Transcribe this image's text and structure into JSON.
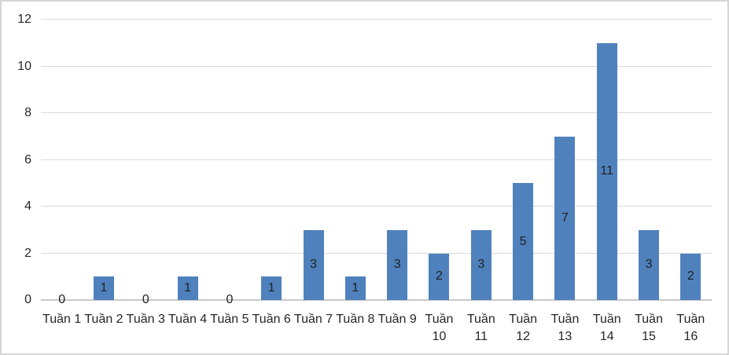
{
  "chart_data": {
    "type": "bar",
    "title": "",
    "xlabel": "",
    "ylabel": "",
    "categories": [
      "Tuần 1",
      "Tuần 2",
      "Tuần 3",
      "Tuần 4",
      "Tuần 5",
      "Tuần 6",
      "Tuần 7",
      "Tuần 8",
      "Tuần 9",
      "Tuần 10",
      "Tuần 11",
      "Tuần 12",
      "Tuần 13",
      "Tuần 14",
      "Tuần 15",
      "Tuần 16"
    ],
    "x_tick_display": [
      "Tuần 1",
      "Tuần 2",
      "Tuần 3",
      "Tuần 4",
      "Tuần 5",
      "Tuần 6",
      "Tuần 7",
      "Tuần 8",
      "Tuần 9",
      "Tuần\n10",
      "Tuần\n11",
      "Tuần\n12",
      "Tuần\n13",
      "Tuần\n14",
      "Tuần\n15",
      "Tuần\n16"
    ],
    "values": [
      0,
      1,
      0,
      1,
      0,
      1,
      3,
      1,
      3,
      2,
      3,
      5,
      7,
      11,
      3,
      2
    ],
    "data_labels": [
      "0",
      "1",
      "0",
      "1",
      "0",
      "1",
      "3",
      "1",
      "3",
      "2",
      "3",
      "5",
      "7",
      "11",
      "3",
      "2"
    ],
    "ylim": [
      0,
      12
    ],
    "yticks": [
      0,
      2,
      4,
      6,
      8,
      10,
      12
    ],
    "grid": true,
    "legend_position": "none",
    "colors": {
      "bar": "#4F81BD",
      "gridline": "#D9D9D9",
      "axis_line": "#C9C9C9",
      "text": "#262626",
      "data_label": "#1F1F1F",
      "background": "#FFFFFF",
      "chart_border": "#D6D6D6"
    }
  }
}
